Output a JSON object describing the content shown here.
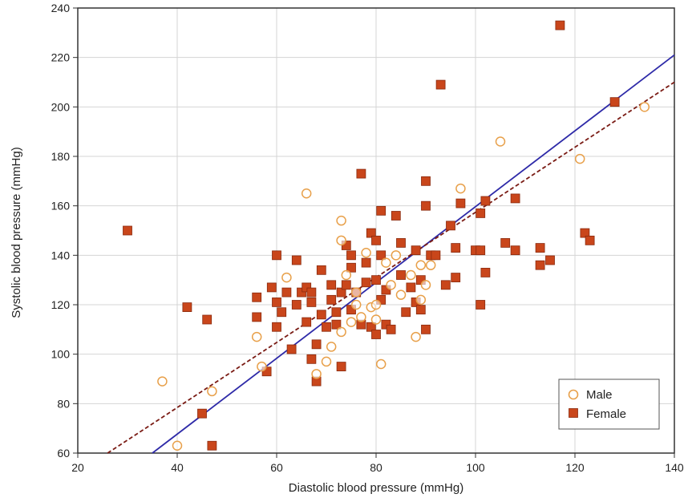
{
  "chart_data": {
    "type": "scatter",
    "xlabel": "Diastolic blood pressure (mmHg)",
    "ylabel": "Systolic blood pressure (mmHg)",
    "xlim": [
      20,
      140
    ],
    "ylim": [
      60,
      240
    ],
    "xticks": [
      20,
      40,
      60,
      80,
      100,
      120,
      140
    ],
    "yticks": [
      60,
      80,
      100,
      120,
      140,
      160,
      180,
      200,
      220,
      240
    ],
    "grid": true,
    "legend_position": "bottom-right",
    "series": [
      {
        "name": "Male",
        "marker": "open-circle",
        "color": "#E8A04A",
        "points": [
          [
            37,
            89
          ],
          [
            40,
            63
          ],
          [
            47,
            85
          ],
          [
            56,
            107
          ],
          [
            57,
            95
          ],
          [
            62,
            131
          ],
          [
            66,
            165
          ],
          [
            68,
            92
          ],
          [
            70,
            97
          ],
          [
            71,
            103
          ],
          [
            73,
            109
          ],
          [
            73,
            154
          ],
          [
            73,
            146
          ],
          [
            74,
            132
          ],
          [
            75,
            113
          ],
          [
            76,
            120
          ],
          [
            76,
            125
          ],
          [
            77,
            115
          ],
          [
            78,
            141
          ],
          [
            79,
            119
          ],
          [
            80,
            114
          ],
          [
            80,
            120
          ],
          [
            81,
            96
          ],
          [
            82,
            137
          ],
          [
            83,
            128
          ],
          [
            84,
            140
          ],
          [
            85,
            124
          ],
          [
            87,
            132
          ],
          [
            88,
            107
          ],
          [
            89,
            136
          ],
          [
            89,
            122
          ],
          [
            90,
            128
          ],
          [
            91,
            136
          ],
          [
            97,
            167
          ],
          [
            105,
            186
          ],
          [
            121,
            179
          ],
          [
            134,
            200
          ]
        ]
      },
      {
        "name": "Female",
        "marker": "filled-square",
        "color": "#C9461B",
        "points": [
          [
            30,
            150
          ],
          [
            42,
            119
          ],
          [
            45,
            76
          ],
          [
            46,
            114
          ],
          [
            47,
            63
          ],
          [
            56,
            115
          ],
          [
            56,
            123
          ],
          [
            58,
            93
          ],
          [
            59,
            127
          ],
          [
            60,
            140
          ],
          [
            60,
            121
          ],
          [
            60,
            111
          ],
          [
            61,
            117
          ],
          [
            62,
            125
          ],
          [
            63,
            102
          ],
          [
            64,
            138
          ],
          [
            64,
            120
          ],
          [
            65,
            125
          ],
          [
            66,
            127
          ],
          [
            66,
            113
          ],
          [
            67,
            98
          ],
          [
            67,
            121
          ],
          [
            67,
            125
          ],
          [
            68,
            89
          ],
          [
            68,
            104
          ],
          [
            69,
            134
          ],
          [
            69,
            116
          ],
          [
            70,
            111
          ],
          [
            71,
            128
          ],
          [
            71,
            122
          ],
          [
            72,
            117
          ],
          [
            72,
            112
          ],
          [
            73,
            95
          ],
          [
            73,
            125
          ],
          [
            74,
            144
          ],
          [
            74,
            128
          ],
          [
            75,
            135
          ],
          [
            75,
            118
          ],
          [
            75,
            140
          ],
          [
            76,
            125
          ],
          [
            77,
            173
          ],
          [
            77,
            112
          ],
          [
            78,
            129
          ],
          [
            78,
            137
          ],
          [
            79,
            149
          ],
          [
            79,
            111
          ],
          [
            80,
            146
          ],
          [
            80,
            108
          ],
          [
            80,
            130
          ],
          [
            81,
            140
          ],
          [
            81,
            122
          ],
          [
            81,
            158
          ],
          [
            82,
            126
          ],
          [
            82,
            112
          ],
          [
            83,
            110
          ],
          [
            84,
            156
          ],
          [
            85,
            132
          ],
          [
            85,
            145
          ],
          [
            86,
            117
          ],
          [
            87,
            127
          ],
          [
            88,
            121
          ],
          [
            88,
            142
          ],
          [
            89,
            118
          ],
          [
            89,
            130
          ],
          [
            90,
            170
          ],
          [
            90,
            160
          ],
          [
            90,
            110
          ],
          [
            91,
            140
          ],
          [
            92,
            140
          ],
          [
            93,
            209
          ],
          [
            94,
            128
          ],
          [
            95,
            152
          ],
          [
            96,
            143
          ],
          [
            96,
            131
          ],
          [
            97,
            161
          ],
          [
            100,
            142
          ],
          [
            101,
            157
          ],
          [
            101,
            142
          ],
          [
            101,
            120
          ],
          [
            102,
            133
          ],
          [
            102,
            162
          ],
          [
            106,
            145
          ],
          [
            108,
            142
          ],
          [
            108,
            163
          ],
          [
            113,
            136
          ],
          [
            113,
            143
          ],
          [
            115,
            138
          ],
          [
            117,
            233
          ],
          [
            122,
            149
          ],
          [
            123,
            146
          ],
          [
            128,
            202
          ]
        ]
      }
    ],
    "fit_lines": [
      {
        "style": "solid",
        "color": "#2E2AA8",
        "x": [
          35,
          140
        ],
        "y": [
          60,
          221
        ]
      },
      {
        "style": "dashed",
        "color": "#7A1B14",
        "x": [
          26,
          140
        ],
        "y": [
          60,
          210
        ]
      }
    ]
  }
}
